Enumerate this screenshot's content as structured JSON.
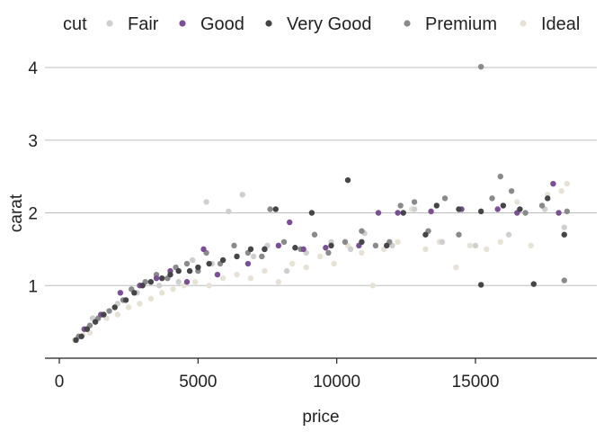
{
  "chart_data": {
    "type": "scatter",
    "title": "",
    "xlabel": "price",
    "ylabel": "carat",
    "xlim": [
      -500,
      19000
    ],
    "ylim": [
      0.0,
      4.25
    ],
    "x_ticks": [
      0,
      5000,
      10000,
      15000
    ],
    "x_tick_labels": [
      "0",
      "5000",
      "10000",
      "15000"
    ],
    "y_ticks": [
      1,
      2,
      3,
      4
    ],
    "y_tick_labels": [
      "1",
      "2",
      "3",
      "4"
    ],
    "grid": "horizontal major",
    "legend": {
      "title": "cut",
      "position": "top",
      "entries": [
        "Fair",
        "Good",
        "Very Good",
        "Premium",
        "Ideal"
      ]
    },
    "colors": {
      "Fair": "#cfcfcf",
      "Good": "#7b4f95",
      "Very Good": "#454548",
      "Premium": "#8a8a8c",
      "Ideal": "#e6e2d6"
    },
    "series": [
      {
        "name": "Fair",
        "points": [
          [
            700,
            0.3
          ],
          [
            1200,
            0.55
          ],
          [
            2100,
            0.75
          ],
          [
            2800,
            0.9
          ],
          [
            3600,
            1.0
          ],
          [
            4300,
            1.05
          ],
          [
            4800,
            1.35
          ],
          [
            5300,
            2.15
          ],
          [
            5500,
            1.3
          ],
          [
            6100,
            2.02
          ],
          [
            6600,
            2.25
          ],
          [
            7000,
            1.4
          ],
          [
            7500,
            1.55
          ],
          [
            8200,
            1.2
          ],
          [
            8900,
            1.45
          ],
          [
            9800,
            1.6
          ],
          [
            10500,
            1.5
          ],
          [
            11000,
            1.72
          ],
          [
            12000,
            1.55
          ],
          [
            12800,
            2.05
          ],
          [
            13800,
            1.6
          ],
          [
            15000,
            1.55
          ],
          [
            16200,
            1.7
          ],
          [
            17500,
            2.05
          ],
          [
            18200,
            1.8
          ]
        ]
      },
      {
        "name": "Good",
        "points": [
          [
            900,
            0.4
          ],
          [
            1500,
            0.6
          ],
          [
            2200,
            0.9
          ],
          [
            2900,
            1.0
          ],
          [
            3500,
            1.1
          ],
          [
            4000,
            1.2
          ],
          [
            4600,
            1.05
          ],
          [
            5200,
            1.5
          ],
          [
            5700,
            1.15
          ],
          [
            6800,
            1.3
          ],
          [
            7400,
            1.5
          ],
          [
            7900,
            1.55
          ],
          [
            8300,
            1.87
          ],
          [
            8800,
            1.5
          ],
          [
            9600,
            1.52
          ],
          [
            10800,
            1.55
          ],
          [
            11500,
            2.0
          ],
          [
            12200,
            2.0
          ],
          [
            13400,
            2.02
          ],
          [
            14500,
            2.05
          ],
          [
            15800,
            2.05
          ],
          [
            16500,
            2.0
          ],
          [
            17800,
            2.4
          ],
          [
            18000,
            2.0
          ]
        ]
      },
      {
        "name": "Very Good",
        "points": [
          [
            600,
            0.25
          ],
          [
            800,
            0.3
          ],
          [
            1000,
            0.4
          ],
          [
            1300,
            0.5
          ],
          [
            1600,
            0.6
          ],
          [
            2000,
            0.7
          ],
          [
            2400,
            0.8
          ],
          [
            2700,
            0.9
          ],
          [
            3000,
            1.0
          ],
          [
            3300,
            1.05
          ],
          [
            3700,
            1.1
          ],
          [
            4000,
            1.15
          ],
          [
            4300,
            1.2
          ],
          [
            4700,
            1.2
          ],
          [
            5000,
            1.25
          ],
          [
            5400,
            1.3
          ],
          [
            5900,
            1.35
          ],
          [
            6400,
            1.4
          ],
          [
            6900,
            1.5
          ],
          [
            7400,
            1.5
          ],
          [
            7800,
            2.05
          ],
          [
            8500,
            1.52
          ],
          [
            9100,
            2.0
          ],
          [
            9800,
            1.55
          ],
          [
            10400,
            2.45
          ],
          [
            10900,
            1.6
          ],
          [
            11800,
            1.55
          ],
          [
            12400,
            2.0
          ],
          [
            13200,
            1.7
          ],
          [
            13600,
            2.1
          ],
          [
            14400,
            2.05
          ],
          [
            15200,
            2.02
          ],
          [
            15200,
            1.01
          ],
          [
            16000,
            2.1
          ],
          [
            16600,
            2.05
          ],
          [
            17100,
            1.02
          ],
          [
            17600,
            2.2
          ],
          [
            18200,
            1.7
          ]
        ]
      },
      {
        "name": "Premium",
        "points": [
          [
            700,
            0.3
          ],
          [
            1100,
            0.45
          ],
          [
            1400,
            0.55
          ],
          [
            1800,
            0.65
          ],
          [
            2300,
            0.8
          ],
          [
            2600,
            0.95
          ],
          [
            3100,
            1.05
          ],
          [
            3500,
            1.15
          ],
          [
            3900,
            1.1
          ],
          [
            4200,
            1.25
          ],
          [
            4600,
            1.3
          ],
          [
            5000,
            1.2
          ],
          [
            5300,
            1.45
          ],
          [
            5800,
            1.3
          ],
          [
            6300,
            1.55
          ],
          [
            6800,
            1.45
          ],
          [
            7300,
            1.4
          ],
          [
            7600,
            2.05
          ],
          [
            8100,
            1.6
          ],
          [
            8700,
            1.5
          ],
          [
            9200,
            1.7
          ],
          [
            9700,
            1.45
          ],
          [
            10300,
            1.6
          ],
          [
            10900,
            1.75
          ],
          [
            11400,
            1.55
          ],
          [
            11900,
            1.6
          ],
          [
            12300,
            2.1
          ],
          [
            12800,
            2.15
          ],
          [
            13300,
            1.75
          ],
          [
            13900,
            2.2
          ],
          [
            14400,
            1.7
          ],
          [
            15200,
            4.01
          ],
          [
            15600,
            2.2
          ],
          [
            15900,
            2.5
          ],
          [
            16300,
            2.3
          ],
          [
            16800,
            2.0
          ],
          [
            17400,
            2.1
          ],
          [
            18200,
            1.07
          ],
          [
            18300,
            2.02
          ]
        ]
      },
      {
        "name": "Ideal",
        "points": [
          [
            550,
            0.25
          ],
          [
            850,
            0.32
          ],
          [
            1100,
            0.35
          ],
          [
            1300,
            0.5
          ],
          [
            1700,
            0.55
          ],
          [
            2100,
            0.6
          ],
          [
            2500,
            0.7
          ],
          [
            2900,
            0.75
          ],
          [
            3300,
            0.82
          ],
          [
            3700,
            0.9
          ],
          [
            4100,
            0.95
          ],
          [
            4500,
            1.0
          ],
          [
            4900,
            1.05
          ],
          [
            5400,
            1.0
          ],
          [
            5900,
            1.1
          ],
          [
            6400,
            1.15
          ],
          [
            6900,
            1.1
          ],
          [
            7400,
            1.2
          ],
          [
            7900,
            1.05
          ],
          [
            8400,
            1.3
          ],
          [
            8900,
            1.25
          ],
          [
            9400,
            1.4
          ],
          [
            9900,
            1.3
          ],
          [
            10400,
            1.55
          ],
          [
            10900,
            1.45
          ],
          [
            11300,
            1.0
          ],
          [
            11700,
            1.5
          ],
          [
            12200,
            1.6
          ],
          [
            12700,
            2.05
          ],
          [
            13200,
            1.5
          ],
          [
            13700,
            1.6
          ],
          [
            14300,
            1.25
          ],
          [
            14800,
            1.55
          ],
          [
            15400,
            1.5
          ],
          [
            15900,
            1.6
          ],
          [
            16500,
            2.15
          ],
          [
            17000,
            1.55
          ],
          [
            17600,
            2.25
          ],
          [
            18100,
            2.3
          ],
          [
            18300,
            2.4
          ]
        ]
      }
    ]
  }
}
